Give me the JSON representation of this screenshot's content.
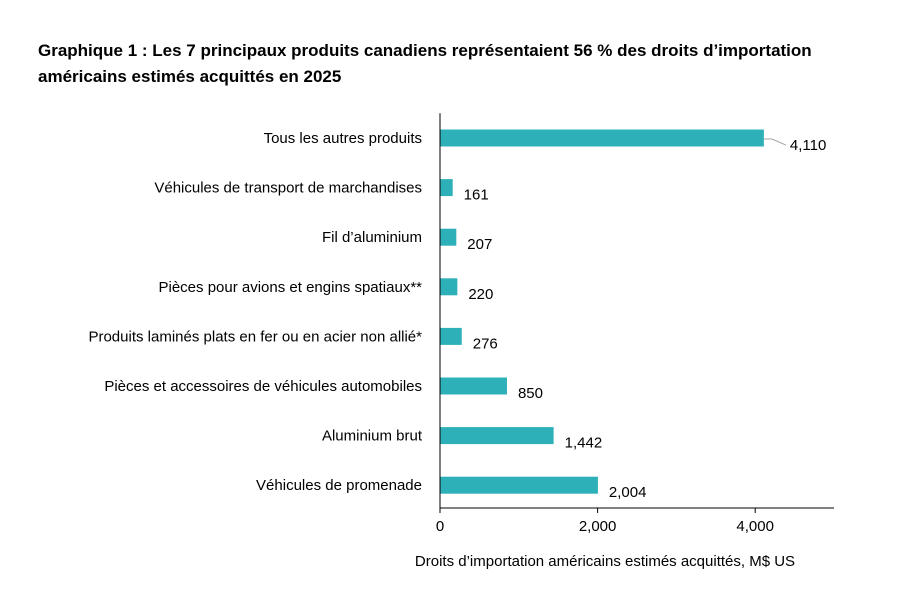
{
  "chart_data": {
    "type": "bar",
    "orientation": "horizontal",
    "title": "Graphique 1 : Les 7 principaux produits canadiens représentaient 56 % des droits d’importation américains estimés acquittés en 2025",
    "xlabel": "Droits d’importation américains estimés acquittés, M$ US",
    "ylabel": "",
    "categories": [
      "Tous les autres produits",
      "Véhicules de transport de marchandises",
      "Fil d’aluminium",
      "Pièces pour avions et engins spatiaux**",
      "Produits laminés plats en fer ou en acier non allié*",
      "Pièces et accessoires de véhicules automobiles",
      "Aluminium brut",
      "Véhicules de promenade"
    ],
    "values": [
      4110,
      161,
      207,
      220,
      276,
      850,
      1442,
      2004
    ],
    "data_labels": [
      "4,110",
      "161",
      "207",
      "220",
      "276",
      "850",
      "1,442",
      "2,004"
    ],
    "xlim": [
      0,
      5000
    ],
    "xticks": [
      0,
      2000,
      4000
    ],
    "xtick_labels": [
      "0",
      "2,000",
      "4,000"
    ],
    "grid": false,
    "legend": "none",
    "bar_color": "#2eb0b9"
  }
}
